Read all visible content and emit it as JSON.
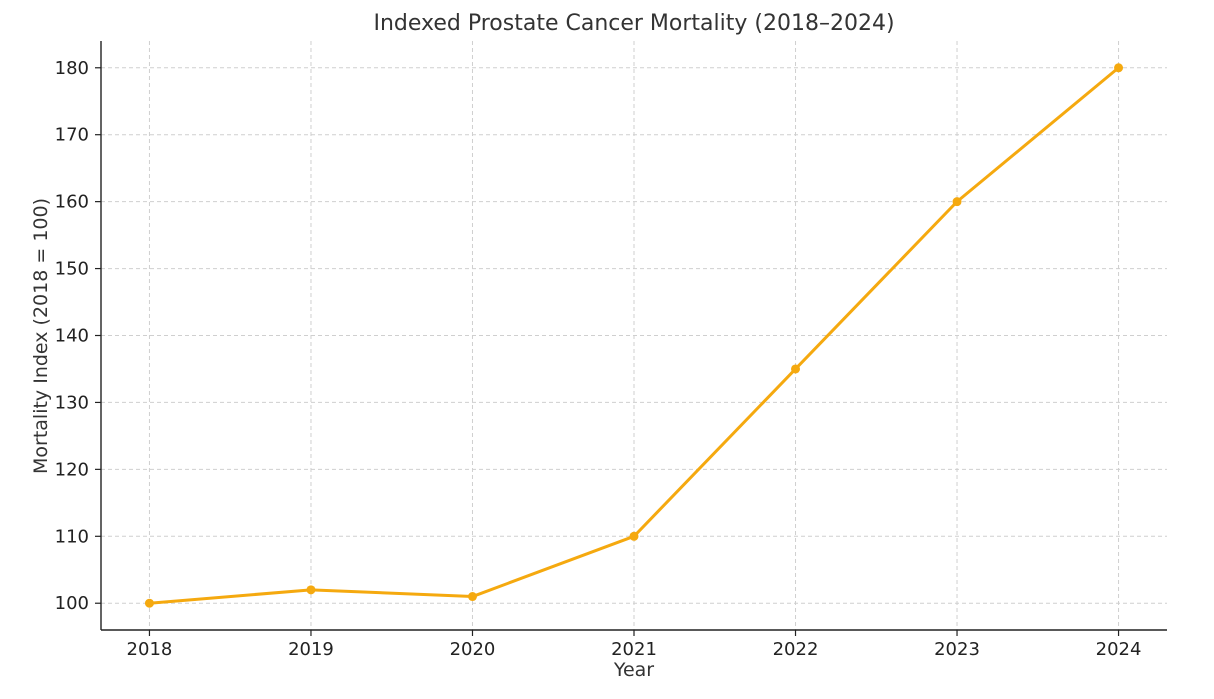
{
  "chart_data": {
    "type": "line",
    "title": "Indexed Prostate Cancer Mortality (2018–2024)",
    "xlabel": "Year",
    "ylabel": "Mortality Index (2018 = 100)",
    "x": [
      2018,
      2019,
      2020,
      2021,
      2022,
      2023,
      2024
    ],
    "x_tick_labels": [
      "2018",
      "2019",
      "2020",
      "2021",
      "2022",
      "2023",
      "2024"
    ],
    "series": [
      {
        "values": [
          100,
          102,
          101,
          110,
          135,
          160,
          180
        ],
        "color": "#F5A90F",
        "marker": "circle"
      }
    ],
    "y_ticks": [
      100,
      110,
      120,
      130,
      140,
      150,
      160,
      170,
      180
    ],
    "y_tick_labels": [
      "100",
      "110",
      "120",
      "130",
      "140",
      "150",
      "160",
      "170",
      "180"
    ],
    "xlim": [
      2017.7,
      2024.3
    ],
    "ylim": [
      96,
      184
    ],
    "grid": true,
    "legend": "none"
  }
}
